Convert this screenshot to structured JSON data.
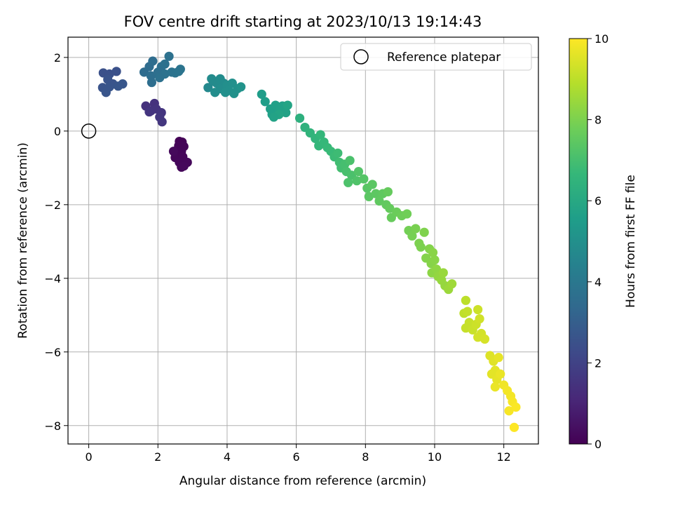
{
  "chart_data": {
    "type": "scatter",
    "title": "FOV centre drift starting at 2023/10/13 19:14:43",
    "xlabel": "Angular distance from reference (arcmin)",
    "ylabel": "Rotation from reference (arcmin)",
    "xlim": [
      -0.6,
      13.0
    ],
    "ylim": [
      -8.5,
      2.55
    ],
    "xticks": [
      0,
      2,
      4,
      6,
      8,
      10,
      12
    ],
    "yticks": [
      -8,
      -6,
      -4,
      -2,
      0,
      2
    ],
    "xtick_labels": [
      "0",
      "2",
      "4",
      "6",
      "8",
      "10",
      "12"
    ],
    "ytick_labels": [
      "−8",
      "−6",
      "−4",
      "−2",
      "0",
      "2"
    ],
    "grid": true,
    "legend": {
      "placement": "top-right",
      "entries": [
        "Reference platepar"
      ]
    },
    "reference_point": {
      "name": "Reference platepar",
      "x": 0,
      "y": 0,
      "marker": "open-circle"
    },
    "colorbar": {
      "label": "Hours from first FF file",
      "colormap": "viridis",
      "range": [
        0,
        10
      ],
      "ticks": [
        0,
        2,
        4,
        6,
        8,
        10
      ],
      "tick_labels": [
        "0",
        "2",
        "4",
        "6",
        "8",
        "10"
      ]
    },
    "colormap_stops": [
      "#440154",
      "#482878",
      "#3e4989",
      "#31688e",
      "#26828e",
      "#1f9e89",
      "#35b779",
      "#6ece58",
      "#b5de2b",
      "#fde725"
    ],
    "points": [
      {
        "x": 2.62,
        "y": -0.28,
        "t": 0.05
      },
      {
        "x": 2.7,
        "y": -0.3,
        "t": 0.05
      },
      {
        "x": 2.6,
        "y": -0.4,
        "t": 0.08
      },
      {
        "x": 2.75,
        "y": -0.42,
        "t": 0.1
      },
      {
        "x": 2.55,
        "y": -0.52,
        "t": 0.1
      },
      {
        "x": 2.68,
        "y": -0.55,
        "t": 0.12
      },
      {
        "x": 2.6,
        "y": -0.65,
        "t": 0.12
      },
      {
        "x": 2.5,
        "y": -0.72,
        "t": 0.15
      },
      {
        "x": 2.72,
        "y": -0.7,
        "t": 0.15
      },
      {
        "x": 2.62,
        "y": -0.85,
        "t": 0.18
      },
      {
        "x": 2.85,
        "y": -0.85,
        "t": 0.2
      },
      {
        "x": 2.68,
        "y": -0.98,
        "t": 0.2
      },
      {
        "x": 2.75,
        "y": -0.95,
        "t": 0.22
      },
      {
        "x": 2.45,
        "y": -0.55,
        "t": 0.22
      },
      {
        "x": 1.65,
        "y": 0.68,
        "t": 1.4
      },
      {
        "x": 1.9,
        "y": 0.75,
        "t": 1.45
      },
      {
        "x": 1.95,
        "y": 0.6,
        "t": 1.5
      },
      {
        "x": 1.8,
        "y": 0.55,
        "t": 1.5
      },
      {
        "x": 2.1,
        "y": 0.5,
        "t": 1.55
      },
      {
        "x": 2.05,
        "y": 0.38,
        "t": 1.6
      },
      {
        "x": 2.12,
        "y": 0.25,
        "t": 1.6
      },
      {
        "x": 1.75,
        "y": 0.52,
        "t": 1.55
      },
      {
        "x": 0.42,
        "y": 1.58,
        "t": 2.5
      },
      {
        "x": 0.6,
        "y": 1.55,
        "t": 2.5
      },
      {
        "x": 0.8,
        "y": 1.62,
        "t": 2.5
      },
      {
        "x": 0.55,
        "y": 1.4,
        "t": 2.6
      },
      {
        "x": 0.7,
        "y": 1.28,
        "t": 2.6
      },
      {
        "x": 0.4,
        "y": 1.18,
        "t": 2.6
      },
      {
        "x": 0.5,
        "y": 1.05,
        "t": 2.65
      },
      {
        "x": 0.85,
        "y": 1.22,
        "t": 2.7
      },
      {
        "x": 0.98,
        "y": 1.28,
        "t": 2.7
      },
      {
        "x": 0.6,
        "y": 1.2,
        "t": 2.65
      },
      {
        "x": 1.6,
        "y": 1.6,
        "t": 3.5
      },
      {
        "x": 1.75,
        "y": 1.75,
        "t": 3.5
      },
      {
        "x": 1.85,
        "y": 1.9,
        "t": 3.55
      },
      {
        "x": 1.8,
        "y": 1.5,
        "t": 3.6
      },
      {
        "x": 1.82,
        "y": 1.32,
        "t": 3.6
      },
      {
        "x": 2.0,
        "y": 1.6,
        "t": 3.65
      },
      {
        "x": 2.1,
        "y": 1.75,
        "t": 3.65
      },
      {
        "x": 2.2,
        "y": 1.82,
        "t": 3.7
      },
      {
        "x": 2.32,
        "y": 2.03,
        "t": 3.7
      },
      {
        "x": 2.2,
        "y": 1.55,
        "t": 3.75
      },
      {
        "x": 2.4,
        "y": 1.6,
        "t": 3.8
      },
      {
        "x": 2.5,
        "y": 1.58,
        "t": 3.8
      },
      {
        "x": 2.6,
        "y": 1.62,
        "t": 3.85
      },
      {
        "x": 2.65,
        "y": 1.68,
        "t": 3.85
      },
      {
        "x": 2.05,
        "y": 1.45,
        "t": 3.7
      },
      {
        "x": 3.45,
        "y": 1.18,
        "t": 4.7
      },
      {
        "x": 3.6,
        "y": 1.35,
        "t": 4.75
      },
      {
        "x": 3.55,
        "y": 1.42,
        "t": 4.8
      },
      {
        "x": 3.7,
        "y": 1.3,
        "t": 4.8
      },
      {
        "x": 3.8,
        "y": 1.42,
        "t": 4.85
      },
      {
        "x": 3.9,
        "y": 1.3,
        "t": 4.85
      },
      {
        "x": 3.65,
        "y": 1.05,
        "t": 4.9
      },
      {
        "x": 3.8,
        "y": 1.15,
        "t": 4.9
      },
      {
        "x": 4.0,
        "y": 1.25,
        "t": 4.95
      },
      {
        "x": 4.05,
        "y": 1.1,
        "t": 5.0
      },
      {
        "x": 4.15,
        "y": 1.3,
        "t": 5.0
      },
      {
        "x": 4.2,
        "y": 1.02,
        "t": 5.05
      },
      {
        "x": 4.3,
        "y": 1.15,
        "t": 5.05
      },
      {
        "x": 4.4,
        "y": 1.2,
        "t": 5.1
      },
      {
        "x": 3.95,
        "y": 1.05,
        "t": 5.0
      },
      {
        "x": 5.0,
        "y": 1.0,
        "t": 5.5
      },
      {
        "x": 5.1,
        "y": 0.8,
        "t": 5.55
      },
      {
        "x": 5.25,
        "y": 0.6,
        "t": 5.6
      },
      {
        "x": 5.3,
        "y": 0.45,
        "t": 5.65
      },
      {
        "x": 5.4,
        "y": 0.7,
        "t": 5.65
      },
      {
        "x": 5.5,
        "y": 0.55,
        "t": 5.7
      },
      {
        "x": 5.6,
        "y": 0.68,
        "t": 5.7
      },
      {
        "x": 5.7,
        "y": 0.5,
        "t": 5.75
      },
      {
        "x": 5.75,
        "y": 0.7,
        "t": 5.8
      },
      {
        "x": 5.5,
        "y": 0.45,
        "t": 5.8
      },
      {
        "x": 5.35,
        "y": 0.38,
        "t": 5.75
      },
      {
        "x": 6.1,
        "y": 0.35,
        "t": 6.3
      },
      {
        "x": 6.25,
        "y": 0.1,
        "t": 6.4
      },
      {
        "x": 6.4,
        "y": -0.05,
        "t": 6.5
      },
      {
        "x": 6.55,
        "y": -0.2,
        "t": 6.55
      },
      {
        "x": 6.65,
        "y": -0.4,
        "t": 6.6
      },
      {
        "x": 6.7,
        "y": -0.1,
        "t": 6.6
      },
      {
        "x": 6.8,
        "y": -0.3,
        "t": 6.65
      },
      {
        "x": 6.9,
        "y": -0.45,
        "t": 6.7
      },
      {
        "x": 7.0,
        "y": -0.55,
        "t": 6.75
      },
      {
        "x": 7.1,
        "y": -0.7,
        "t": 6.8
      },
      {
        "x": 7.2,
        "y": -0.6,
        "t": 6.85
      },
      {
        "x": 7.25,
        "y": -0.85,
        "t": 6.9
      },
      {
        "x": 7.3,
        "y": -1.0,
        "t": 6.95
      },
      {
        "x": 7.4,
        "y": -0.9,
        "t": 7.0
      },
      {
        "x": 7.45,
        "y": -1.1,
        "t": 7.05
      },
      {
        "x": 7.55,
        "y": -0.8,
        "t": 7.1
      },
      {
        "x": 7.6,
        "y": -1.2,
        "t": 7.1
      },
      {
        "x": 7.5,
        "y": -1.4,
        "t": 7.15
      },
      {
        "x": 7.75,
        "y": -1.35,
        "t": 7.2
      },
      {
        "x": 7.8,
        "y": -1.1,
        "t": 7.25
      },
      {
        "x": 7.95,
        "y": -1.3,
        "t": 7.3
      },
      {
        "x": 8.05,
        "y": -1.55,
        "t": 7.35
      },
      {
        "x": 8.1,
        "y": -1.78,
        "t": 7.4
      },
      {
        "x": 8.2,
        "y": -1.45,
        "t": 7.4
      },
      {
        "x": 8.3,
        "y": -1.7,
        "t": 7.45
      },
      {
        "x": 8.4,
        "y": -1.9,
        "t": 7.5
      },
      {
        "x": 8.5,
        "y": -1.7,
        "t": 7.5
      },
      {
        "x": 8.6,
        "y": -2.0,
        "t": 7.55
      },
      {
        "x": 8.65,
        "y": -1.65,
        "t": 7.6
      },
      {
        "x": 8.7,
        "y": -2.1,
        "t": 7.6
      },
      {
        "x": 8.75,
        "y": -2.35,
        "t": 7.65
      },
      {
        "x": 8.9,
        "y": -2.2,
        "t": 7.7
      },
      {
        "x": 9.05,
        "y": -2.3,
        "t": 7.75
      },
      {
        "x": 9.2,
        "y": -2.25,
        "t": 7.8
      },
      {
        "x": 9.25,
        "y": -2.7,
        "t": 7.85
      },
      {
        "x": 9.35,
        "y": -2.85,
        "t": 7.9
      },
      {
        "x": 9.45,
        "y": -2.65,
        "t": 7.95
      },
      {
        "x": 9.55,
        "y": -3.05,
        "t": 8.0
      },
      {
        "x": 9.6,
        "y": -3.15,
        "t": 8.0
      },
      {
        "x": 9.7,
        "y": -2.75,
        "t": 8.05
      },
      {
        "x": 9.75,
        "y": -3.45,
        "t": 8.1
      },
      {
        "x": 9.85,
        "y": -3.2,
        "t": 8.1
      },
      {
        "x": 9.9,
        "y": -3.6,
        "t": 8.15
      },
      {
        "x": 9.95,
        "y": -3.3,
        "t": 8.2
      },
      {
        "x": 10.0,
        "y": -3.5,
        "t": 8.2
      },
      {
        "x": 9.92,
        "y": -3.85,
        "t": 8.25
      },
      {
        "x": 10.05,
        "y": -3.75,
        "t": 8.3
      },
      {
        "x": 10.1,
        "y": -3.95,
        "t": 8.35
      },
      {
        "x": 10.2,
        "y": -4.05,
        "t": 8.4
      },
      {
        "x": 10.3,
        "y": -4.2,
        "t": 8.4
      },
      {
        "x": 10.25,
        "y": -3.85,
        "t": 8.45
      },
      {
        "x": 10.4,
        "y": -4.3,
        "t": 8.5
      },
      {
        "x": 10.5,
        "y": -4.15,
        "t": 8.55
      },
      {
        "x": 10.9,
        "y": -4.6,
        "t": 9.0
      },
      {
        "x": 10.85,
        "y": -4.95,
        "t": 9.05
      },
      {
        "x": 10.95,
        "y": -4.9,
        "t": 9.1
      },
      {
        "x": 11.0,
        "y": -5.2,
        "t": 9.15
      },
      {
        "x": 10.9,
        "y": -5.35,
        "t": 9.15
      },
      {
        "x": 11.1,
        "y": -5.4,
        "t": 9.2
      },
      {
        "x": 11.2,
        "y": -5.25,
        "t": 9.25
      },
      {
        "x": 11.25,
        "y": -4.85,
        "t": 9.25
      },
      {
        "x": 11.3,
        "y": -5.1,
        "t": 9.3
      },
      {
        "x": 11.35,
        "y": -5.5,
        "t": 9.35
      },
      {
        "x": 11.25,
        "y": -5.6,
        "t": 9.35
      },
      {
        "x": 11.45,
        "y": -5.65,
        "t": 9.4
      },
      {
        "x": 11.6,
        "y": -6.1,
        "t": 9.5
      },
      {
        "x": 11.7,
        "y": -6.25,
        "t": 9.55
      },
      {
        "x": 11.75,
        "y": -6.5,
        "t": 9.6
      },
      {
        "x": 11.65,
        "y": -6.6,
        "t": 9.6
      },
      {
        "x": 11.8,
        "y": -6.75,
        "t": 9.65
      },
      {
        "x": 11.75,
        "y": -6.95,
        "t": 9.7
      },
      {
        "x": 11.9,
        "y": -6.6,
        "t": 9.7
      },
      {
        "x": 11.85,
        "y": -6.15,
        "t": 9.65
      },
      {
        "x": 12.0,
        "y": -6.9,
        "t": 9.8
      },
      {
        "x": 12.1,
        "y": -7.05,
        "t": 9.85
      },
      {
        "x": 12.2,
        "y": -7.2,
        "t": 9.85
      },
      {
        "x": 12.25,
        "y": -7.35,
        "t": 9.9
      },
      {
        "x": 12.15,
        "y": -7.6,
        "t": 9.9
      },
      {
        "x": 12.35,
        "y": -7.5,
        "t": 9.95
      },
      {
        "x": 12.3,
        "y": -8.05,
        "t": 10.0
      }
    ]
  }
}
